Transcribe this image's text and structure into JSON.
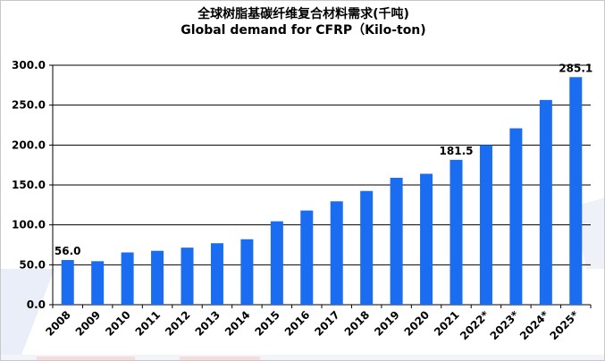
{
  "chart_data": {
    "type": "bar",
    "title": "全球树脂基碳纤维复合材料需求(千吨)",
    "subtitle": "Global demand for CFRP（Kilo-ton)",
    "xlabel": "",
    "ylabel": "",
    "categories": [
      "2008",
      "2009",
      "2010",
      "2011",
      "2012",
      "2013",
      "2014",
      "2015",
      "2016",
      "2017",
      "2018",
      "2019",
      "2020",
      "2021",
      "2022*",
      "2023*",
      "2024*",
      "2025*"
    ],
    "values": [
      56.0,
      54.5,
      65.5,
      67.5,
      71.5,
      77.0,
      82.0,
      104.5,
      118.0,
      129.5,
      142.5,
      159.0,
      164.0,
      181.5,
      200.0,
      221.0,
      256.5,
      285.1
    ],
    "data_labels": [
      {
        "index": 0,
        "text": "56.0"
      },
      {
        "index": 13,
        "text": "181.5"
      },
      {
        "index": 17,
        "text": "285.1"
      }
    ],
    "yticks": [
      "0.0",
      "50.0",
      "100.0",
      "150.0",
      "200.0",
      "250.0",
      "300.0"
    ],
    "ylim": [
      0,
      300
    ],
    "grid": true,
    "bar_color": "#1a6cf0"
  }
}
